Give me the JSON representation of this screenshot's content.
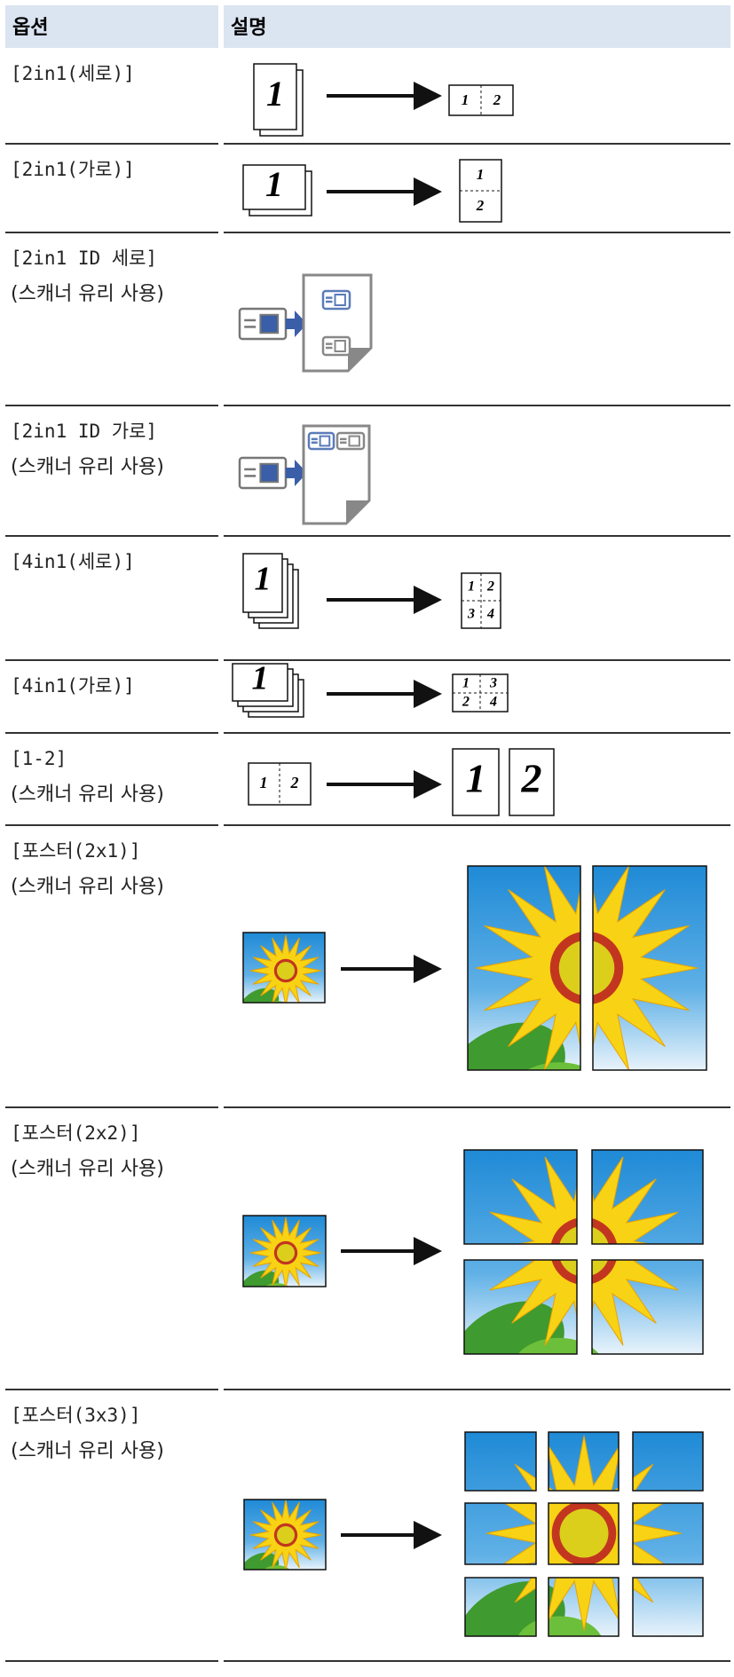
{
  "header": [
    "옵션",
    "설명"
  ],
  "rows": [
    {
      "option": [
        "[2in1(세로)]"
      ],
      "figure": {
        "source": [
          "1"
        ],
        "result": [
          "1",
          "2"
        ]
      }
    },
    {
      "option": [
        "[2in1(가로)]"
      ],
      "figure": {
        "source": [
          "1"
        ],
        "result": [
          "1",
          "2"
        ]
      }
    },
    {
      "option": [
        "[2in1 ID 세로]",
        "(스캐너 유리 사용)"
      ]
    },
    {
      "option": [
        "[2in1 ID 가로]",
        "(스캐너 유리 사용)"
      ]
    },
    {
      "option": [
        "[4in1(세로)]"
      ],
      "figure": {
        "source": [
          "1"
        ],
        "result": [
          "1",
          "2",
          "3",
          "4"
        ]
      }
    },
    {
      "option": [
        "[4in1(가로)]"
      ],
      "figure": {
        "source": [
          "1"
        ],
        "result": [
          "1",
          "3",
          "2",
          "4"
        ]
      }
    },
    {
      "option": [
        "[1-2]",
        "(스캐너 유리 사용)"
      ],
      "figure": {
        "source": [
          "1",
          "2"
        ],
        "result": [
          "1",
          "2"
        ]
      }
    },
    {
      "option": [
        "[포스터(2x1)]",
        "(스캐너 유리 사용)"
      ]
    },
    {
      "option": [
        "[포스터(2x2)]",
        "(스캐너 유리 사용)"
      ]
    },
    {
      "option": [
        "[포스터(3x3)]",
        "(스캐너 유리 사용)"
      ]
    }
  ]
}
